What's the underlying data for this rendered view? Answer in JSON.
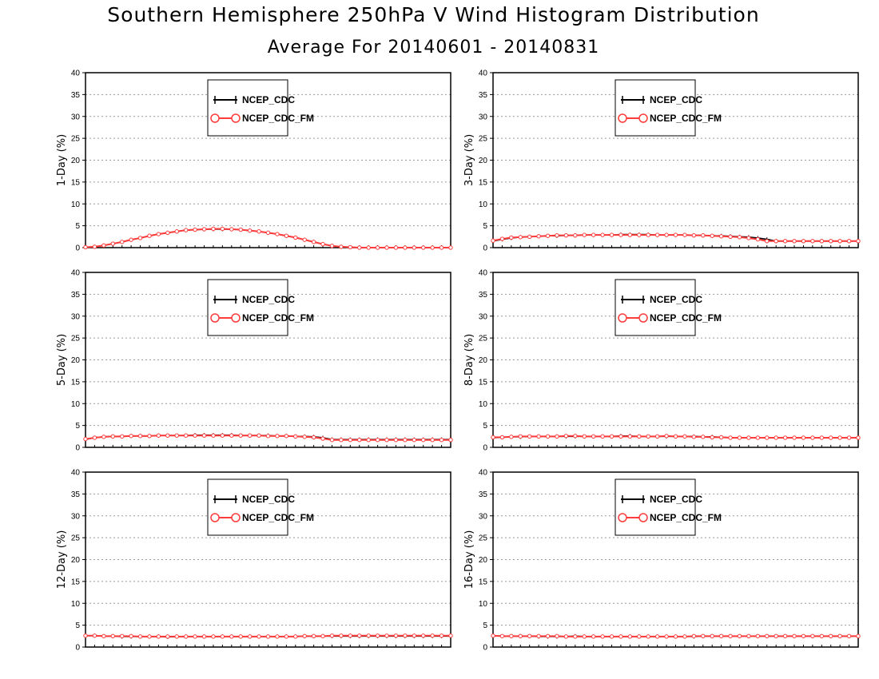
{
  "title": "Southern Hemisphere 250hPa V Wind Histogram Distribution",
  "subtitle": "Average For 20140601 - 20140831",
  "colors": {
    "ncep_cdc": "#000000",
    "ncep_cdc_fm": "#ff3b3b",
    "grid": "#999999"
  },
  "chart_data": [
    {
      "type": "line",
      "panel": "1-Day",
      "ylabel": "1-Day (%)",
      "ylim": [
        0,
        40
      ],
      "yticks": [
        0,
        5,
        10,
        15,
        20,
        25,
        30,
        35,
        40
      ],
      "grid": true,
      "legend": "top-center",
      "x": [
        1,
        2,
        3,
        4,
        5,
        6,
        7,
        8,
        9,
        10,
        11,
        12,
        13,
        14,
        15,
        16,
        17,
        18,
        19,
        20,
        21,
        22,
        23,
        24,
        25,
        26,
        27,
        28,
        29,
        30,
        31,
        32,
        33,
        34,
        35,
        36,
        37,
        38,
        39,
        40,
        41
      ],
      "series": [
        {
          "name": "NCEP_CDC",
          "values": [
            0.1,
            0.2,
            0.5,
            0.9,
            1.3,
            1.8,
            2.2,
            2.7,
            3.1,
            3.4,
            3.7,
            4.0,
            4.1,
            4.2,
            4.2,
            4.2,
            4.2,
            4.1,
            3.9,
            3.7,
            3.4,
            3.1,
            2.7,
            2.3,
            1.8,
            1.3,
            0.8,
            0.4,
            0.2,
            0.1,
            0.0,
            0.0,
            0.0,
            0.0,
            0.0,
            0.0,
            0.0,
            0.0,
            0.0,
            0.0,
            0.0
          ]
        },
        {
          "name": "NCEP_CDC_FM",
          "values": [
            0.1,
            0.2,
            0.5,
            0.9,
            1.3,
            1.8,
            2.2,
            2.7,
            3.1,
            3.4,
            3.7,
            4.0,
            4.1,
            4.2,
            4.3,
            4.3,
            4.2,
            4.1,
            3.9,
            3.7,
            3.4,
            3.1,
            2.7,
            2.3,
            1.8,
            1.3,
            0.8,
            0.4,
            0.2,
            0.1,
            0.0,
            0.0,
            0.0,
            0.0,
            0.0,
            0.0,
            0.0,
            0.0,
            0.0,
            0.0,
            0.0
          ]
        }
      ]
    },
    {
      "type": "line",
      "panel": "3-Day",
      "ylabel": "3-Day (%)",
      "ylim": [
        0,
        40
      ],
      "yticks": [
        0,
        5,
        10,
        15,
        20,
        25,
        30,
        35,
        40
      ],
      "grid": true,
      "legend": "top-center",
      "x": [
        1,
        2,
        3,
        4,
        5,
        6,
        7,
        8,
        9,
        10,
        11,
        12,
        13,
        14,
        15,
        16,
        17,
        18,
        19,
        20,
        21,
        22,
        23,
        24,
        25,
        26,
        27,
        28,
        29,
        30,
        31,
        32,
        33,
        34,
        35,
        36,
        37,
        38,
        39,
        40,
        41
      ],
      "series": [
        {
          "name": "NCEP_CDC",
          "values": [
            1.5,
            1.9,
            2.2,
            2.4,
            2.5,
            2.6,
            2.7,
            2.7,
            2.8,
            2.8,
            2.9,
            2.9,
            2.9,
            2.9,
            3.0,
            3.0,
            3.0,
            3.0,
            2.9,
            2.9,
            2.9,
            2.9,
            2.8,
            2.8,
            2.7,
            2.7,
            2.6,
            2.5,
            2.4,
            2.2,
            1.9,
            1.5,
            1.5,
            1.5,
            1.5,
            1.5,
            1.5,
            1.5,
            1.5,
            1.5,
            1.5
          ]
        },
        {
          "name": "NCEP_CDC_FM",
          "values": [
            1.6,
            2.0,
            2.3,
            2.4,
            2.5,
            2.6,
            2.7,
            2.8,
            2.8,
            2.8,
            2.9,
            2.9,
            2.9,
            2.9,
            2.9,
            2.9,
            2.9,
            2.9,
            2.9,
            2.9,
            2.9,
            2.9,
            2.8,
            2.8,
            2.7,
            2.6,
            2.5,
            2.4,
            2.2,
            1.9,
            1.5,
            1.5,
            1.5,
            1.5,
            1.5,
            1.5,
            1.5,
            1.5,
            1.5,
            1.5,
            1.5
          ]
        }
      ]
    },
    {
      "type": "line",
      "panel": "5-Day",
      "ylabel": "5-Day (%)",
      "ylim": [
        0,
        40
      ],
      "yticks": [
        0,
        5,
        10,
        15,
        20,
        25,
        30,
        35,
        40
      ],
      "grid": true,
      "legend": "top-center",
      "x": [
        1,
        2,
        3,
        4,
        5,
        6,
        7,
        8,
        9,
        10,
        11,
        12,
        13,
        14,
        15,
        16,
        17,
        18,
        19,
        20,
        21,
        22,
        23,
        24,
        25,
        26,
        27,
        28,
        29,
        30,
        31,
        32,
        33,
        34,
        35,
        36,
        37,
        38,
        39,
        40,
        41
      ],
      "series": [
        {
          "name": "NCEP_CDC",
          "values": [
            1.8,
            2.2,
            2.4,
            2.5,
            2.5,
            2.6,
            2.6,
            2.6,
            2.7,
            2.7,
            2.7,
            2.7,
            2.8,
            2.8,
            2.8,
            2.8,
            2.8,
            2.7,
            2.7,
            2.7,
            2.7,
            2.6,
            2.6,
            2.5,
            2.5,
            2.4,
            2.2,
            1.8,
            1.8,
            1.8,
            1.8,
            1.8,
            1.8,
            1.8,
            1.8,
            1.8,
            1.8,
            1.8,
            1.8,
            1.8,
            1.8
          ]
        },
        {
          "name": "NCEP_CDC_FM",
          "values": [
            1.9,
            2.2,
            2.4,
            2.5,
            2.5,
            2.6,
            2.6,
            2.6,
            2.7,
            2.7,
            2.7,
            2.7,
            2.7,
            2.7,
            2.7,
            2.7,
            2.7,
            2.7,
            2.7,
            2.7,
            2.6,
            2.6,
            2.6,
            2.5,
            2.4,
            2.3,
            2.0,
            1.7,
            1.7,
            1.7,
            1.7,
            1.7,
            1.7,
            1.7,
            1.7,
            1.7,
            1.7,
            1.7,
            1.7,
            1.7,
            1.7
          ]
        }
      ]
    },
    {
      "type": "line",
      "panel": "8-Day",
      "ylabel": "8-Day (%)",
      "ylim": [
        0,
        40
      ],
      "yticks": [
        0,
        5,
        10,
        15,
        20,
        25,
        30,
        35,
        40
      ],
      "grid": true,
      "legend": "top-center",
      "x": [
        1,
        2,
        3,
        4,
        5,
        6,
        7,
        8,
        9,
        10,
        11,
        12,
        13,
        14,
        15,
        16,
        17,
        18,
        19,
        20,
        21,
        22,
        23,
        24,
        25,
        26,
        27,
        28,
        29,
        30,
        31,
        32,
        33,
        34,
        35,
        36,
        37,
        38,
        39,
        40,
        41
      ],
      "series": [
        {
          "name": "NCEP_CDC",
          "values": [
            2.2,
            2.3,
            2.4,
            2.4,
            2.5,
            2.5,
            2.5,
            2.5,
            2.5,
            2.5,
            2.5,
            2.5,
            2.5,
            2.5,
            2.6,
            2.6,
            2.5,
            2.5,
            2.5,
            2.5,
            2.5,
            2.5,
            2.5,
            2.4,
            2.4,
            2.3,
            2.2,
            2.2,
            2.2,
            2.2,
            2.2,
            2.2,
            2.2,
            2.2,
            2.2,
            2.2,
            2.2,
            2.2,
            2.2,
            2.2,
            2.2
          ]
        },
        {
          "name": "NCEP_CDC_FM",
          "values": [
            2.3,
            2.3,
            2.4,
            2.5,
            2.5,
            2.5,
            2.5,
            2.5,
            2.6,
            2.6,
            2.5,
            2.5,
            2.5,
            2.5,
            2.5,
            2.5,
            2.5,
            2.5,
            2.5,
            2.6,
            2.5,
            2.5,
            2.4,
            2.4,
            2.3,
            2.3,
            2.2,
            2.2,
            2.2,
            2.2,
            2.2,
            2.2,
            2.2,
            2.2,
            2.2,
            2.2,
            2.2,
            2.2,
            2.2,
            2.2,
            2.2
          ]
        }
      ]
    },
    {
      "type": "line",
      "panel": "12-Day",
      "ylabel": "12-Day (%)",
      "ylim": [
        0,
        40
      ],
      "yticks": [
        0,
        5,
        10,
        15,
        20,
        25,
        30,
        35,
        40
      ],
      "grid": true,
      "legend": "top-center",
      "x": [
        1,
        2,
        3,
        4,
        5,
        6,
        7,
        8,
        9,
        10,
        11,
        12,
        13,
        14,
        15,
        16,
        17,
        18,
        19,
        20,
        21,
        22,
        23,
        24,
        25,
        26,
        27,
        28,
        29,
        30,
        31,
        32,
        33,
        34,
        35,
        36,
        37,
        38,
        39,
        40,
        41
      ],
      "series": [
        {
          "name": "NCEP_CDC",
          "values": [
            2.6,
            2.6,
            2.5,
            2.5,
            2.4,
            2.4,
            2.4,
            2.4,
            2.4,
            2.3,
            2.4,
            2.4,
            2.4,
            2.4,
            2.4,
            2.4,
            2.4,
            2.4,
            2.4,
            2.4,
            2.4,
            2.4,
            2.4,
            2.4,
            2.5,
            2.5,
            2.5,
            2.5,
            2.5,
            2.5,
            2.5,
            2.5,
            2.5,
            2.5,
            2.5,
            2.5,
            2.5,
            2.5,
            2.5,
            2.5,
            2.5
          ]
        },
        {
          "name": "NCEP_CDC_FM",
          "values": [
            2.6,
            2.6,
            2.5,
            2.5,
            2.5,
            2.5,
            2.4,
            2.4,
            2.4,
            2.4,
            2.4,
            2.4,
            2.4,
            2.4,
            2.4,
            2.4,
            2.4,
            2.4,
            2.4,
            2.4,
            2.4,
            2.4,
            2.4,
            2.4,
            2.5,
            2.5,
            2.5,
            2.6,
            2.6,
            2.6,
            2.6,
            2.6,
            2.6,
            2.6,
            2.6,
            2.6,
            2.6,
            2.6,
            2.6,
            2.6,
            2.6
          ]
        }
      ]
    },
    {
      "type": "line",
      "panel": "16-Day",
      "ylabel": "16-Day (%)",
      "ylim": [
        0,
        40
      ],
      "yticks": [
        0,
        5,
        10,
        15,
        20,
        25,
        30,
        35,
        40
      ],
      "grid": true,
      "legend": "top-center",
      "x": [
        1,
        2,
        3,
        4,
        5,
        6,
        7,
        8,
        9,
        10,
        11,
        12,
        13,
        14,
        15,
        16,
        17,
        18,
        19,
        20,
        21,
        22,
        23,
        24,
        25,
        26,
        27,
        28,
        29,
        30,
        31,
        32,
        33,
        34,
        35,
        36,
        37,
        38,
        39,
        40,
        41
      ],
      "series": [
        {
          "name": "NCEP_CDC",
          "values": [
            2.6,
            2.5,
            2.5,
            2.5,
            2.5,
            2.4,
            2.4,
            2.4,
            2.4,
            2.5,
            2.4,
            2.4,
            2.4,
            2.4,
            2.4,
            2.4,
            2.4,
            2.4,
            2.4,
            2.4,
            2.4,
            2.4,
            2.4,
            2.5,
            2.5,
            2.5,
            2.5,
            2.5,
            2.5,
            2.5,
            2.5,
            2.5,
            2.5,
            2.5,
            2.5,
            2.5,
            2.5,
            2.5,
            2.5,
            2.5,
            2.5
          ]
        },
        {
          "name": "NCEP_CDC_FM",
          "values": [
            2.6,
            2.5,
            2.5,
            2.5,
            2.5,
            2.5,
            2.5,
            2.5,
            2.4,
            2.4,
            2.4,
            2.4,
            2.4,
            2.4,
            2.4,
            2.4,
            2.4,
            2.4,
            2.4,
            2.4,
            2.4,
            2.4,
            2.5,
            2.5,
            2.5,
            2.5,
            2.5,
            2.5,
            2.5,
            2.5,
            2.5,
            2.5,
            2.5,
            2.5,
            2.5,
            2.5,
            2.5,
            2.5,
            2.5,
            2.5,
            2.5
          ]
        }
      ]
    }
  ]
}
